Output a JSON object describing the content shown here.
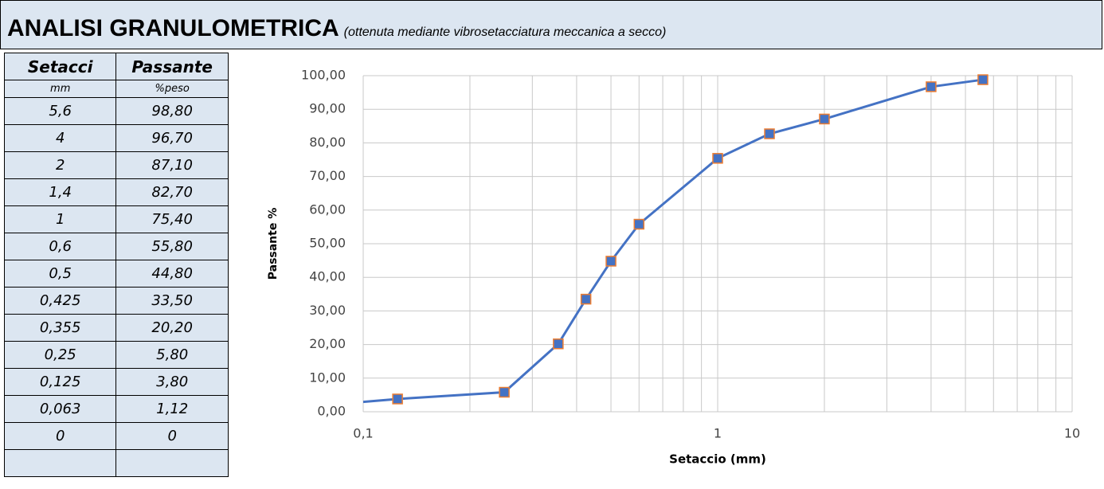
{
  "header": {
    "title": "ANALISI GRANULOMETRICA",
    "subtitle": "(ottenuta mediante vibrosetacciatura meccanica a secco)"
  },
  "table": {
    "headers": [
      "Setacci",
      "Passante"
    ],
    "units": [
      "mm",
      "%peso"
    ],
    "rows": [
      [
        "5,6",
        "98,80"
      ],
      [
        "4",
        "96,70"
      ],
      [
        "2",
        "87,10"
      ],
      [
        "1,4",
        "82,70"
      ],
      [
        "1",
        "75,40"
      ],
      [
        "0,6",
        "55,80"
      ],
      [
        "0,5",
        "44,80"
      ],
      [
        "0,425",
        "33,50"
      ],
      [
        "0,355",
        "20,20"
      ],
      [
        "0,25",
        "5,80"
      ],
      [
        "0,125",
        "3,80"
      ],
      [
        "0,063",
        "1,12"
      ],
      [
        "0",
        "0"
      ]
    ]
  },
  "chart_data": {
    "type": "line",
    "x_label": "Setaccio (mm)",
    "y_label": "Passante %",
    "x": [
      0.063,
      0.125,
      0.25,
      0.355,
      0.425,
      0.5,
      0.6,
      1,
      1.4,
      2,
      4,
      5.6
    ],
    "series": [
      {
        "color": "#4472c4",
        "marker_edge": "#ed7d31",
        "values": [
          1.12,
          3.8,
          5.8,
          20.2,
          33.5,
          44.8,
          55.8,
          75.4,
          82.7,
          87.1,
          96.7,
          98.8
        ]
      }
    ],
    "xscale": "log",
    "xlim": [
      0.1,
      10
    ],
    "xticks": [
      {
        "value": 0.1,
        "label": "0,1"
      },
      1,
      10
    ],
    "ylim": [
      0,
      100
    ],
    "yticks": [
      {
        "value": 0,
        "label": "0,00"
      },
      {
        "value": 10,
        "label": "10,00"
      },
      {
        "value": 20,
        "label": "20,00"
      },
      {
        "value": 30,
        "label": "30,00"
      },
      {
        "value": 40,
        "label": "40,00"
      },
      {
        "value": 50,
        "label": "50,00"
      },
      {
        "value": 60,
        "label": "60,00"
      },
      {
        "value": 70,
        "label": "70,00"
      },
      {
        "value": 80,
        "label": "80,00"
      },
      {
        "value": 90,
        "label": "90,00"
      },
      {
        "value": 100,
        "label": "100,00"
      }
    ],
    "grid": true,
    "minor_grid": true
  }
}
